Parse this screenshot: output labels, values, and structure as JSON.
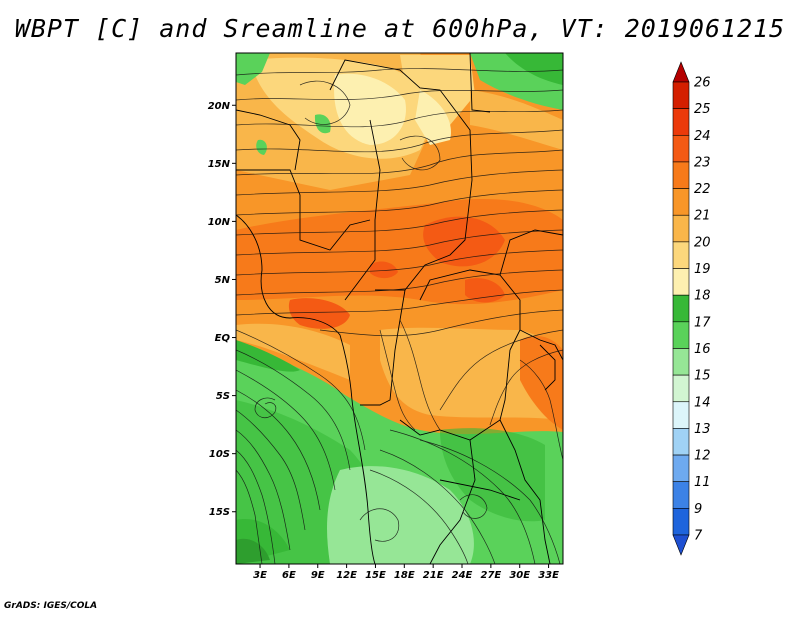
{
  "title": "WBPT [C] and Sreamline at 600hPa, VT: 2019061215",
  "credit": "GrADS: IGES/COLA",
  "map": {
    "lat_labels": [
      "20N",
      "15N",
      "10N",
      "5N",
      "EQ",
      "5S",
      "10S",
      "15S"
    ],
    "lat_values": [
      20,
      15,
      10,
      5,
      0,
      -5,
      -10,
      -15
    ],
    "lon_labels": [
      "3E",
      "6E",
      "9E",
      "12E",
      "15E",
      "18E",
      "21E",
      "24E",
      "27E",
      "30E",
      "33E"
    ],
    "lon_values": [
      3,
      6,
      9,
      12,
      15,
      18,
      21,
      24,
      27,
      30,
      33
    ],
    "lat_range": [
      -19.5,
      24.5
    ],
    "lon_range": [
      0.5,
      34.5
    ]
  },
  "colorbar": {
    "levels": [
      "26",
      "25",
      "24",
      "23",
      "22",
      "21",
      "20",
      "19",
      "18",
      "17",
      "16",
      "15",
      "14",
      "13",
      "12",
      "11",
      "9",
      "7"
    ],
    "colors": [
      "#b50000",
      "#d41f00",
      "#ec3a0a",
      "#f45a14",
      "#f77a1a",
      "#f89628",
      "#f9b64a",
      "#fcd77c",
      "#fdf0b0",
      "#37b837",
      "#5ad25a",
      "#96e696",
      "#d2f5d2",
      "#dcf5fa",
      "#a0d2f5",
      "#6eaaf0",
      "#3c82e6",
      "#1e64dc",
      "#1e50d2"
    ]
  }
}
